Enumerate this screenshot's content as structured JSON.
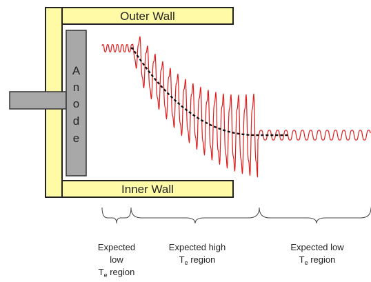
{
  "walls": {
    "outer_label": "Outer Wall",
    "inner_label": "Inner Wall",
    "fill_color": "#fffaa6",
    "stroke_color": "#222222"
  },
  "anode": {
    "letters": [
      "A",
      "n",
      "o",
      "d",
      "e"
    ],
    "fill_color": "#a8a8a8",
    "stroke_color": "#333333"
  },
  "signal": {
    "color": "#e01b1b",
    "mean_color": "#111111"
  },
  "regions": [
    {
      "lines": [
        "Expected",
        "low",
        "T",
        "region"
      ],
      "subscript": "e"
    },
    {
      "lines": [
        "Expected high",
        "T",
        "region"
      ],
      "subscript": "e"
    },
    {
      "lines": [
        "Expected low",
        "T",
        "region"
      ],
      "subscript": "e"
    }
  ]
}
